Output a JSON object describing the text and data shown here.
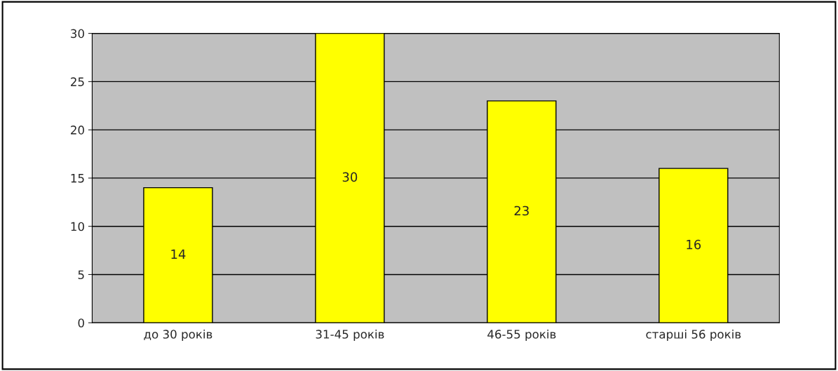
{
  "chart_data": {
    "type": "bar",
    "categories": [
      "до 30 років",
      "31-45 років",
      "46-55 років",
      "старші 56 років"
    ],
    "values": [
      14,
      30,
      23,
      16
    ],
    "color": "#ffff00",
    "ylim": [
      0,
      30
    ],
    "yticks": [
      0,
      5,
      10,
      15,
      20,
      25,
      30
    ],
    "grid": "y",
    "data_labels": true,
    "legend": false
  }
}
